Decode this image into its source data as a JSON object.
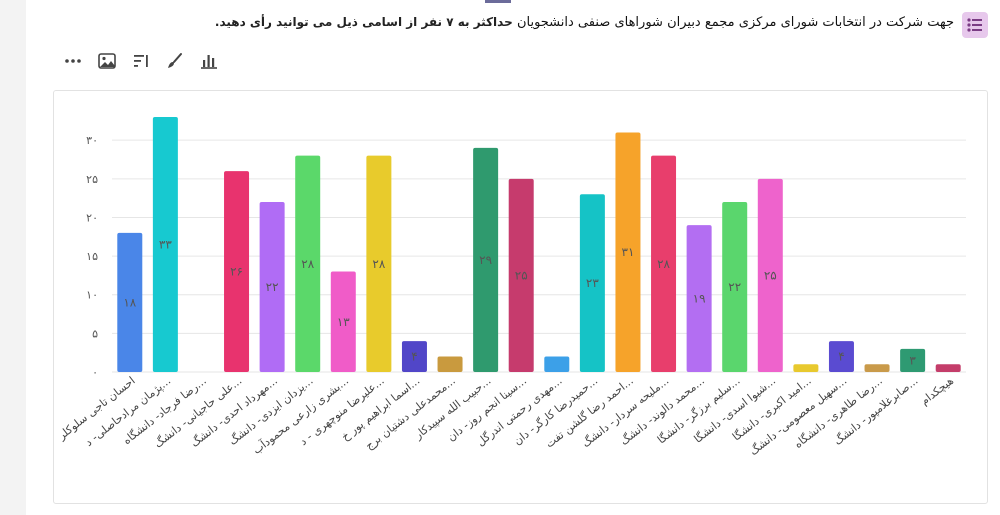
{
  "question": {
    "head": "جهت شرکت در انتخابات شورای مرکزی مجمع دبیران شوراهای صنفی دانشجویان",
    "rest": "حداکثر به ۷ نفر از اسامی ذیل می توانید رأی دهید.",
    "icon": "question-list-icon"
  },
  "toolbar": {
    "items": [
      {
        "name": "more-icon",
        "label": "more"
      },
      {
        "name": "image-icon",
        "label": "image"
      },
      {
        "name": "sort-icon",
        "label": "sort"
      },
      {
        "name": "brush-icon",
        "label": "brush"
      },
      {
        "name": "bar-chart-icon",
        "label": "bar chart"
      }
    ]
  },
  "colors": {
    "grid": "#e6e6e6",
    "axis_text": "#555555",
    "bar_label": "#555555"
  },
  "chart_data": {
    "type": "bar",
    "title": "",
    "xlabel": "",
    "ylabel": "",
    "ylim": [
      0,
      33
    ],
    "yticks": [
      0,
      5,
      10,
      15,
      20,
      25,
      30
    ],
    "ytick_labels": [
      "۰",
      "۵",
      "۱۰",
      "۱۵",
      "۲۰",
      "۲۵",
      "۳۰"
    ],
    "grid": true,
    "categories": [
      "احسان تاجی سلوکلر",
      "پژمان مرادحاصلی- د...",
      "رضا فرجاد- دانشگاه...",
      "علی حاجیانی- دانشگ...",
      "مهرداد احدی- دانشگ...",
      "یزدان ایزدی- دانشگ...",
      "بشری زارعی محمودآب...",
      "علیرضا منوچهری - د...",
      "اسما ابراهیم پور خ...",
      "محمدعلی دشتیان برج...",
      "حبیب الله سپیدکار...",
      "سینا انجم روز- دان...",
      "مهدی رحمتی اندرگل...",
      "حمیدرضا کارگر- دان...",
      "احمد رضا گلشن تفت...",
      "ملیحه سردار- دانشگ...",
      "محمد دالوند- دانشگ...",
      "سلیم برزگر- دانشگا...",
      "شیوا اسدی- دانشگا...",
      "امید اکبری- دانشگا...",
      "سهیل معصومی- دانشگ...",
      "رضا طاهری- دانشگاه...",
      "صابرغلامپور- دانشگ...",
      "هیچکدام"
    ],
    "values": [
      18,
      33,
      0,
      26,
      22,
      28,
      13,
      28,
      4,
      2,
      29,
      25,
      2,
      23,
      31,
      28,
      19,
      22,
      25,
      1,
      4,
      1,
      3,
      1
    ],
    "value_labels": [
      "۱۸",
      "۳۳",
      "",
      "۲۶",
      "۲۲",
      "۲۸",
      "۱۳",
      "۲۸",
      "۴",
      "",
      "۲۹",
      "۲۵",
      "",
      "۲۳",
      "۳۱",
      "۲۸",
      "۱۹",
      "۲۲",
      "۲۵",
      "",
      "۴",
      "",
      "۳",
      ""
    ],
    "colors": [
      "#4a86e8",
      "#17c9d0",
      "#9e9e9e",
      "#e8336e",
      "#b06cf5",
      "#5bd86a",
      "#f05cc8",
      "#e8cb2c",
      "#5146c8",
      "#c99a3e",
      "#2f9a6e",
      "#c63b6d",
      "#3ca0e8",
      "#15c3c6",
      "#f6a32a",
      "#e83e6c",
      "#b36ef2",
      "#5ad66d",
      "#ee63cc",
      "#e8c92e",
      "#5a4bd1",
      "#c99a4a",
      "#2e9a72",
      "#c43d6a"
    ]
  }
}
